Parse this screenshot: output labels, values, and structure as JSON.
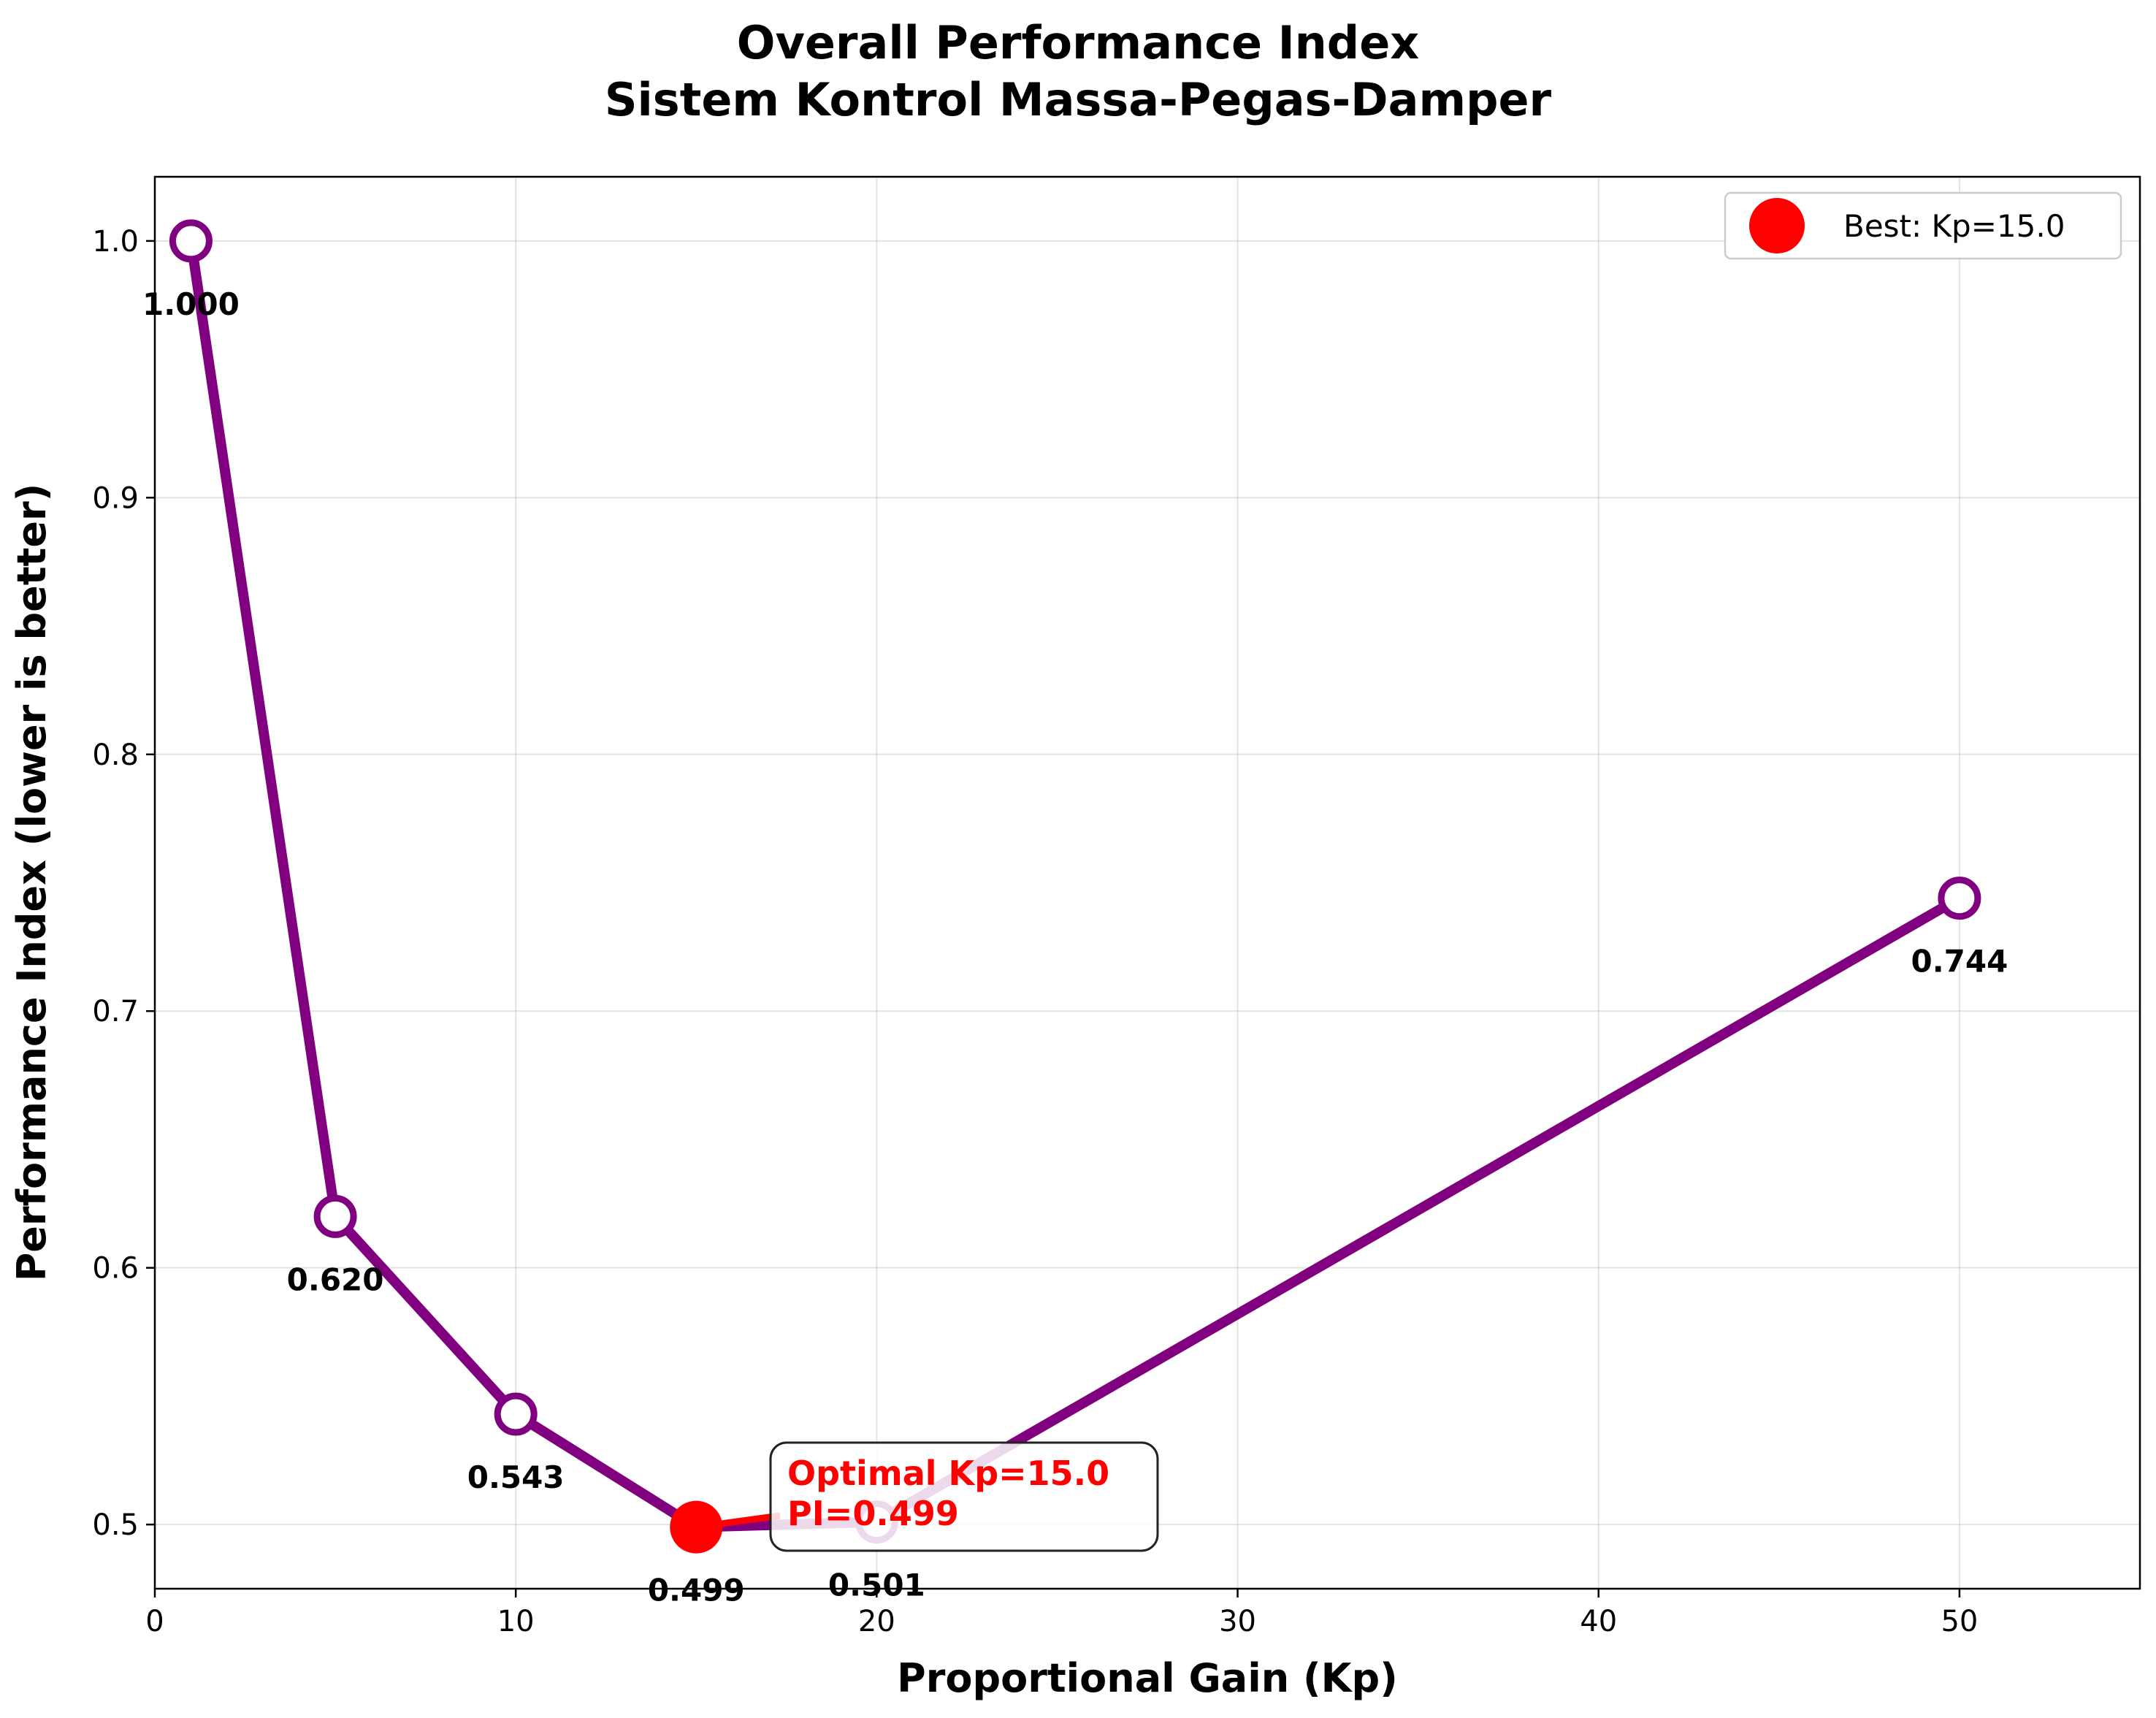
{
  "chart_data": {
    "type": "line",
    "title_line1": "Overall Performance Index",
    "title_line2": "Sistem Kontrol Massa-Pegas-Damper",
    "xlabel": "Proportional Gain (Kp)",
    "ylabel": "Performance Index (lower is better)",
    "xlim": [
      0,
      55
    ],
    "ylim": [
      0.475,
      1.025
    ],
    "xticks": [
      0,
      10,
      20,
      30,
      40,
      50
    ],
    "yticks": [
      0.5,
      0.6,
      0.7,
      0.8,
      0.9,
      1.0
    ],
    "grid": true,
    "line_color": "#800080",
    "best_color": "#ff0000",
    "series": [
      {
        "x": [
          1,
          5,
          10,
          15,
          20,
          50
        ],
        "y": [
          1.0,
          0.62,
          0.543,
          0.499,
          0.501,
          0.744
        ],
        "labels": [
          "1.000",
          "0.620",
          "0.543",
          "0.499",
          "0.501",
          "0.744"
        ]
      }
    ],
    "best": {
      "x": 15,
      "y": 0.499
    },
    "legend": {
      "label": "Best: Kp=15.0",
      "position": "upper right"
    },
    "annotation": {
      "line1": "Optimal Kp=15.0",
      "line2": "PI=0.499",
      "x": 15,
      "y": 0.499
    }
  }
}
